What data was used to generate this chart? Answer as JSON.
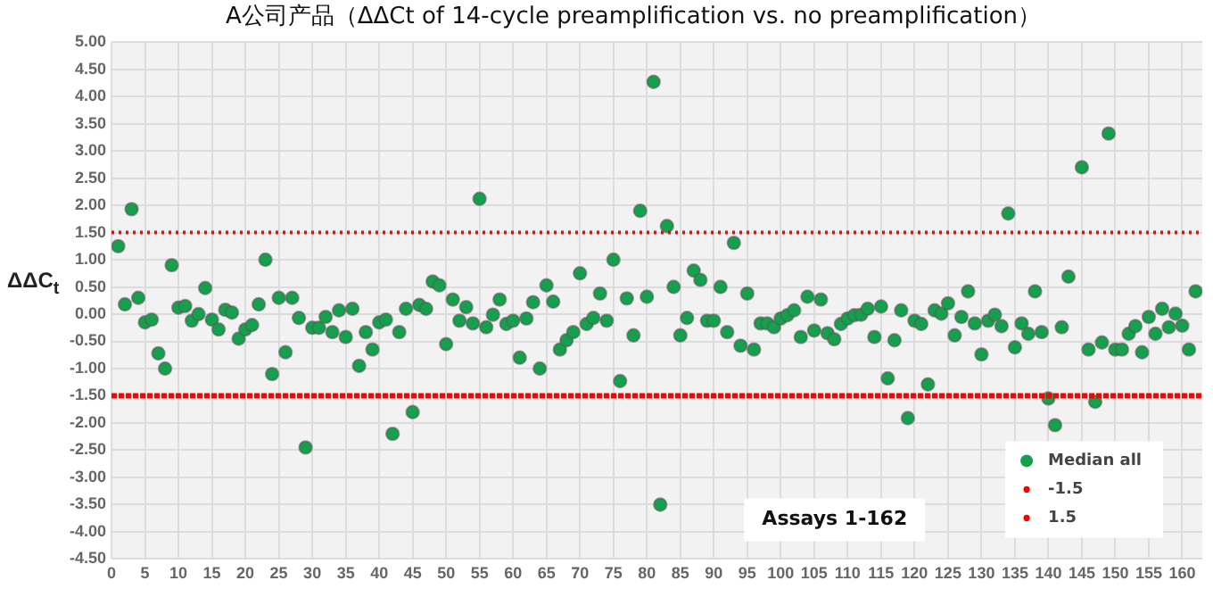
{
  "chart_data": {
    "type": "scatter",
    "title": "A公司产品（ΔΔCt of 14-cycle preamplification vs. no preamplification）",
    "ylabel": "ΔΔC$_{t}$",
    "x": [
      1,
      2,
      3,
      4,
      5,
      6,
      7,
      8,
      9,
      10,
      11,
      12,
      13,
      14,
      15,
      16,
      17,
      18,
      19,
      20,
      21,
      22,
      23,
      24,
      25,
      26,
      27,
      28,
      29,
      30,
      31,
      32,
      33,
      34,
      35,
      36,
      37,
      38,
      39,
      40,
      41,
      42,
      43,
      44,
      45,
      46,
      47,
      48,
      49,
      50,
      51,
      52,
      53,
      54,
      55,
      56,
      57,
      58,
      59,
      60,
      61,
      62,
      63,
      64,
      65,
      66,
      67,
      68,
      69,
      70,
      71,
      72,
      73,
      74,
      75,
      76,
      77,
      78,
      79,
      80,
      81,
      82,
      83,
      84,
      85,
      86,
      87,
      88,
      89,
      90,
      91,
      92,
      93,
      94,
      95,
      96,
      97,
      98,
      99,
      100,
      101,
      102,
      103,
      104,
      105,
      106,
      107,
      108,
      109,
      110,
      111,
      112,
      113,
      114,
      115,
      116,
      117,
      118,
      119,
      120,
      121,
      122,
      123,
      124,
      125,
      126,
      127,
      128,
      129,
      130,
      131,
      132,
      133,
      134,
      135,
      136,
      137,
      138,
      139,
      140,
      141,
      142,
      143,
      145,
      146,
      147,
      148,
      149,
      150,
      151,
      152,
      153,
      154,
      155,
      156,
      157,
      158,
      159,
      160,
      161,
      162
    ],
    "series": [
      {
        "name": "Median all",
        "color": "#14a04c",
        "values": [
          1.25,
          0.18,
          1.93,
          0.3,
          -0.15,
          -0.1,
          -0.72,
          -1.0,
          0.9,
          0.12,
          0.15,
          -0.12,
          0.0,
          0.48,
          -0.1,
          -0.28,
          0.08,
          0.03,
          -0.45,
          -0.28,
          -0.2,
          0.18,
          1.0,
          -1.1,
          0.3,
          -0.7,
          0.3,
          -0.07,
          -2.45,
          -0.25,
          -0.25,
          -0.05,
          -0.33,
          0.07,
          -0.42,
          0.1,
          -0.95,
          -0.33,
          -0.65,
          -0.15,
          -0.1,
          -2.2,
          -0.33,
          0.1,
          -1.8,
          0.17,
          0.1,
          0.6,
          0.53,
          -0.55,
          0.27,
          -0.12,
          0.13,
          -0.17,
          2.12,
          -0.24,
          -0.01,
          0.27,
          -0.18,
          -0.12,
          -0.8,
          -0.08,
          0.22,
          -1.0,
          0.53,
          0.23,
          -0.65,
          -0.48,
          -0.33,
          0.75,
          -0.18,
          -0.07,
          0.38,
          -0.12,
          1.0,
          -1.23,
          0.29,
          -0.39,
          1.9,
          0.32,
          4.27,
          -3.5,
          1.62,
          0.5,
          -0.39,
          -0.07,
          0.8,
          0.63,
          -0.12,
          -0.12,
          0.5,
          -0.33,
          1.31,
          -0.58,
          0.38,
          -0.65,
          -0.17,
          -0.17,
          -0.24,
          -0.08,
          -0.02,
          0.07,
          -0.42,
          0.32,
          -0.3,
          0.27,
          -0.35,
          -0.46,
          -0.18,
          -0.08,
          -0.02,
          -0.01,
          0.1,
          -0.42,
          0.14,
          -1.18,
          -0.48,
          0.07,
          -1.91,
          -0.12,
          -0.18,
          -1.29,
          0.07,
          0.01,
          0.2,
          -0.39,
          -0.05,
          0.42,
          -0.17,
          -0.74,
          -0.12,
          -0.01,
          -0.22,
          1.85,
          -0.61,
          -0.17,
          -0.36,
          0.42,
          -0.33,
          -1.55,
          -2.04,
          -0.24,
          0.69,
          2.7,
          -0.65,
          -1.61,
          -0.52,
          3.32,
          -0.65,
          -0.65,
          -0.36,
          -0.22,
          -0.7,
          -0.05,
          -0.36,
          0.1,
          -0.24,
          0.01,
          -0.21,
          -0.65,
          0.42
        ]
      }
    ],
    "ref_lines": [
      {
        "axis": "y",
        "value": -1.5,
        "label": "-1.5",
        "color": "#ff0000",
        "line_style": "dashed"
      },
      {
        "axis": "y",
        "value": 1.5,
        "label": "1.5",
        "color": "#ff0000",
        "line_style": "dotted"
      }
    ],
    "annotations": [
      "Assays 1-162"
    ],
    "marker": "circle",
    "grid": true,
    "legend": "bottom right",
    "xlim": [
      0,
      163
    ],
    "xticks": [
      0,
      5,
      10,
      15,
      20,
      25,
      30,
      35,
      40,
      45,
      50,
      55,
      60,
      65,
      70,
      75,
      80,
      85,
      90,
      95,
      100,
      105,
      110,
      115,
      120,
      125,
      130,
      135,
      140,
      145,
      150,
      155,
      160
    ],
    "ylim": [
      -4.5,
      5
    ],
    "yticks": [
      {
        "value": -4.5,
        "label": "-4.50"
      },
      {
        "value": -4,
        "label": "-4.00"
      },
      {
        "value": -3.5,
        "label": "-3.50"
      },
      {
        "value": -3,
        "label": "-3.00"
      },
      {
        "value": -2.5,
        "label": "-2.50"
      },
      {
        "value": -2,
        "label": "-2.00"
      },
      {
        "value": -1.5,
        "label": "-1.50"
      },
      {
        "value": -1,
        "label": "-1.00"
      },
      {
        "value": -0.5,
        "label": "-0.50"
      },
      {
        "value": 0,
        "label": "0.00"
      },
      {
        "value": 0.5,
        "label": "0.50"
      },
      {
        "value": 1,
        "label": "1.00"
      },
      {
        "value": 1.5,
        "label": "1.50"
      },
      {
        "value": 2,
        "label": "2.00"
      },
      {
        "value": 2.5,
        "label": "2.50"
      },
      {
        "value": 3,
        "label": "3.00"
      },
      {
        "value": 3.5,
        "label": "3.50"
      },
      {
        "value": 4,
        "label": "4.00"
      },
      {
        "value": 4.5,
        "label": "4.50"
      },
      {
        "value": 5,
        "label": "5.00"
      }
    ]
  }
}
